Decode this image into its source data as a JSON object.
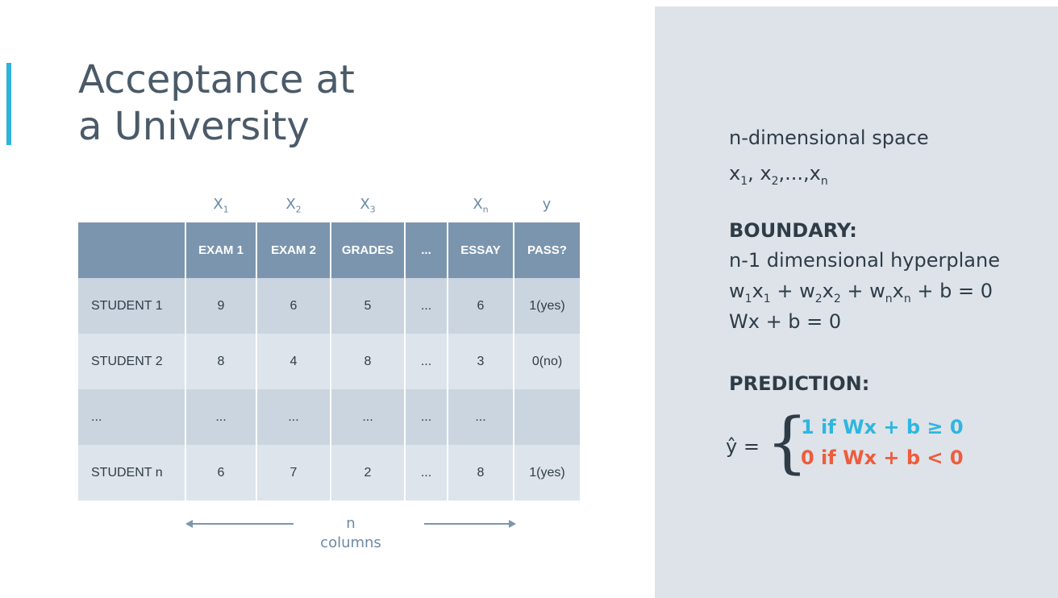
{
  "slide": {
    "title_line1": "Acceptance at",
    "title_line2": "a University",
    "accent_color": "#2fb3d8"
  },
  "table": {
    "variable_labels": [
      {
        "base": "X",
        "sub": "1"
      },
      {
        "base": "X",
        "sub": "2"
      },
      {
        "base": "X",
        "sub": "3"
      },
      {
        "base": "X",
        "sub": "n"
      },
      {
        "base": "y",
        "sub": ""
      }
    ],
    "columns": [
      "",
      "EXAM 1",
      "EXAM 2",
      "GRADES",
      "...",
      "ESSAY",
      "PASS?"
    ],
    "rows": [
      [
        "STUDENT 1",
        "9",
        "6",
        "5",
        "...",
        "6",
        "1(yes)"
      ],
      [
        "STUDENT 2",
        "8",
        "4",
        "8",
        "...",
        "3",
        "0(no)"
      ],
      [
        "...",
        "...",
        "...",
        "...",
        "...",
        "...",
        ""
      ],
      [
        "STUDENT n",
        "6",
        "7",
        "2",
        "...",
        "8",
        "1(yes)"
      ]
    ],
    "columns_caption": "n columns"
  },
  "panel": {
    "space_label": "n-dimensional space",
    "variables": {
      "x1": "x",
      "s1": "1",
      "x2": "x",
      "s2": "2",
      "ellipsis": ",...,",
      "xn": "x",
      "sn": "n"
    },
    "boundary_heading": "BOUNDARY:",
    "boundary_desc": "n-1 dimensional hyperplane",
    "equation": {
      "w1": "w",
      "s1a": "1",
      "x1": "x",
      "s1b": "1",
      "p1": " + ",
      "w2": "w",
      "s2a": "2",
      "x2": "x",
      "s2b": "2",
      "p2": " + ",
      "wn": "w",
      "sna": "n",
      "xn": "x",
      "snb": "n",
      "tail": " + b = 0"
    },
    "matrix_equation": "Wx + b = 0",
    "prediction_heading": "PREDICTION:",
    "yhat": "ŷ =",
    "case_positive": "1 if Wx + b ≥ 0",
    "case_negative": "0 if Wx + b < 0",
    "positive_color": "#2eb6e0",
    "negative_color": "#ef5b3c"
  }
}
